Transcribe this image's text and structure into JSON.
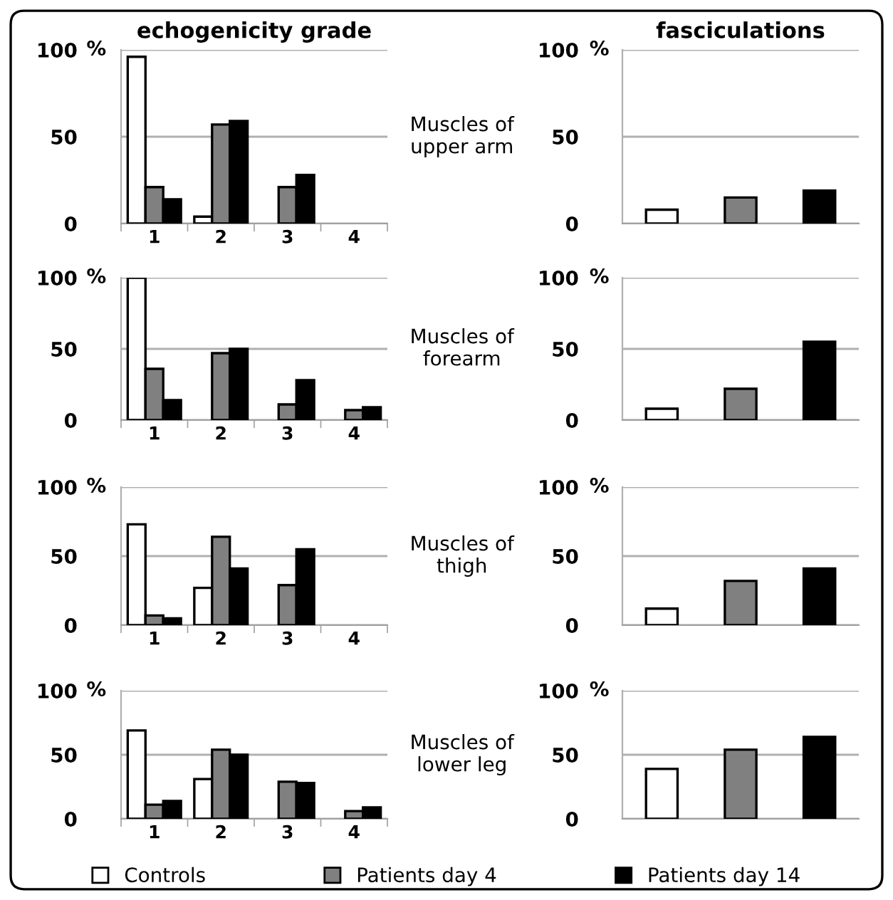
{
  "chart_data": [
    {
      "type": "bar",
      "title": "echogenicity grade",
      "ylabel": "%",
      "categories": [
        "1",
        "2",
        "3",
        "4"
      ],
      "ylim": [
        0,
        100
      ],
      "yticks": [
        0,
        50,
        100
      ],
      "grid": "y",
      "legend": "bottom",
      "annotations": [
        "Muscles of\nupper arm"
      ],
      "series": [
        {
          "name": "Controls",
          "color": "#ffffff",
          "values": [
            96,
            4,
            null,
            null
          ]
        },
        {
          "name": "Patients day 4",
          "color": "#808080",
          "values": [
            21,
            57,
            21,
            null
          ]
        },
        {
          "name": "Patients day 14",
          "color": "#000000",
          "values": [
            14,
            59,
            28,
            null
          ]
        }
      ]
    },
    {
      "type": "bar",
      "title": "fasciculations",
      "ylabel": "%",
      "categories": [
        null,
        null,
        null
      ],
      "values": [
        8,
        15,
        19
      ],
      "colors": [
        "#ffffff",
        "#808080",
        "#000000"
      ],
      "ylim": [
        0,
        100
      ],
      "yticks": [
        0,
        50,
        100
      ],
      "grid": "y"
    },
    {
      "type": "bar",
      "ylabel": "%",
      "categories": [
        "1",
        "2",
        "3",
        "4"
      ],
      "ylim": [
        0,
        100
      ],
      "yticks": [
        0,
        50,
        100
      ],
      "grid": "y",
      "annotations": [
        "Muscles of\nforearm"
      ],
      "series": [
        {
          "color": "#ffffff",
          "values": [
            100,
            null,
            null,
            null
          ]
        },
        {
          "color": "#808080",
          "values": [
            36,
            47,
            11,
            7
          ]
        },
        {
          "color": "#000000",
          "values": [
            14,
            50,
            28,
            9
          ]
        }
      ]
    },
    {
      "type": "bar",
      "ylabel": "%",
      "categories": [
        null,
        null,
        null
      ],
      "values": [
        8,
        22,
        55
      ],
      "colors": [
        "#ffffff",
        "#808080",
        "#000000"
      ],
      "ylim": [
        0,
        100
      ],
      "yticks": [
        0,
        50,
        100
      ],
      "grid": "y"
    },
    {
      "type": "bar",
      "ylabel": "%",
      "categories": [
        "1",
        "2",
        "3",
        "4"
      ],
      "ylim": [
        0,
        100
      ],
      "yticks": [
        0,
        50,
        100
      ],
      "grid": "y",
      "annotations": [
        "Muscles of\nthigh"
      ],
      "series": [
        {
          "color": "#ffffff",
          "values": [
            73,
            27,
            null,
            null
          ]
        },
        {
          "color": "#808080",
          "values": [
            7,
            64,
            29,
            null
          ]
        },
        {
          "color": "#000000",
          "values": [
            5,
            41,
            55,
            null
          ]
        }
      ]
    },
    {
      "type": "bar",
      "ylabel": "%",
      "categories": [
        null,
        null,
        null
      ],
      "values": [
        12,
        32,
        41
      ],
      "colors": [
        "#ffffff",
        "#808080",
        "#000000"
      ],
      "ylim": [
        0,
        100
      ],
      "yticks": [
        0,
        50,
        100
      ],
      "grid": "y"
    },
    {
      "type": "bar",
      "ylabel": "%",
      "categories": [
        "1",
        "2",
        "3",
        "4"
      ],
      "ylim": [
        0,
        100
      ],
      "yticks": [
        0,
        50,
        100
      ],
      "grid": "y",
      "annotations": [
        "Muscles of\nlower leg"
      ],
      "series": [
        {
          "color": "#ffffff",
          "values": [
            69,
            31,
            null,
            null
          ]
        },
        {
          "color": "#808080",
          "values": [
            11,
            54,
            29,
            6
          ]
        },
        {
          "color": "#000000",
          "values": [
            14,
            50,
            28,
            9
          ]
        }
      ]
    },
    {
      "type": "bar",
      "ylabel": "%",
      "categories": [
        null,
        null,
        null
      ],
      "values": [
        39,
        54,
        64
      ],
      "colors": [
        "#ffffff",
        "#808080",
        "#000000"
      ],
      "ylim": [
        0,
        100
      ],
      "yticks": [
        0,
        50,
        100
      ],
      "grid": "y"
    }
  ]
}
